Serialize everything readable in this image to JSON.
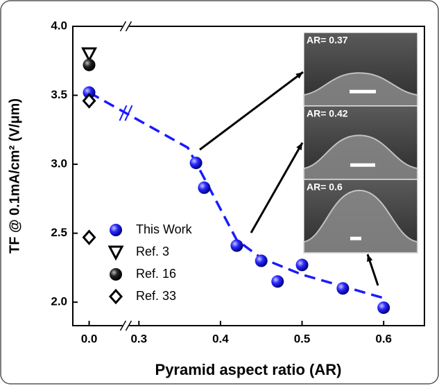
{
  "chart_data": {
    "type": "scatter",
    "y_label": "TF @ 0.1mA/cm² (V/μm)",
    "x_label": "Pyramid aspect ratio (AR)",
    "xlim": [
      -0.02,
      0.65
    ],
    "x_break": [
      0.045,
      0.284
    ],
    "ylim": [
      1.83,
      4.0
    ],
    "xticks": [
      {
        "value": 0.0,
        "label": "0.0"
      },
      {
        "value": 0.3,
        "label": "0.3"
      },
      {
        "value": 0.4,
        "label": "0.4"
      },
      {
        "value": 0.5,
        "label": "0.5"
      },
      {
        "value": 0.6,
        "label": "0.6"
      }
    ],
    "yticks": [
      {
        "value": 2.0,
        "label": "2.0"
      },
      {
        "value": 2.5,
        "label": "2.5"
      },
      {
        "value": 3.0,
        "label": "3.0"
      },
      {
        "value": 3.5,
        "label": "3.5"
      },
      {
        "value": 4.0,
        "label": "4.0"
      }
    ],
    "series": [
      {
        "name": "This Work",
        "marker": "sphere",
        "color": "#1a1aff",
        "x": [
          0.0,
          0.37,
          0.38,
          0.42,
          0.45,
          0.47,
          0.5,
          0.55,
          0.6
        ],
        "values": [
          3.52,
          3.01,
          2.83,
          2.41,
          2.3,
          2.15,
          2.27,
          2.1,
          1.96
        ]
      },
      {
        "name": "Ref. 3",
        "marker": "triangle-down",
        "color": "#000000",
        "x": [
          0.0
        ],
        "values": [
          3.8
        ]
      },
      {
        "name": "Ref. 16",
        "marker": "sphere",
        "color": "#000000",
        "x": [
          0.0
        ],
        "values": [
          3.72
        ]
      },
      {
        "name": "Ref. 33",
        "marker": "diamond",
        "color": "#000000",
        "x": [
          0.0,
          0.0
        ],
        "values": [
          3.46,
          2.47
        ]
      }
    ],
    "trend_line": {
      "color": "#1a1aff",
      "x": [
        0.0,
        0.36,
        0.38,
        0.42,
        0.45,
        0.5,
        0.6
      ],
      "values": [
        3.52,
        3.12,
        2.9,
        2.45,
        2.32,
        2.2,
        2.03
      ]
    },
    "insets": [
      "AR= 0.37",
      "AR= 0.42",
      "AR= 0.6"
    ]
  }
}
